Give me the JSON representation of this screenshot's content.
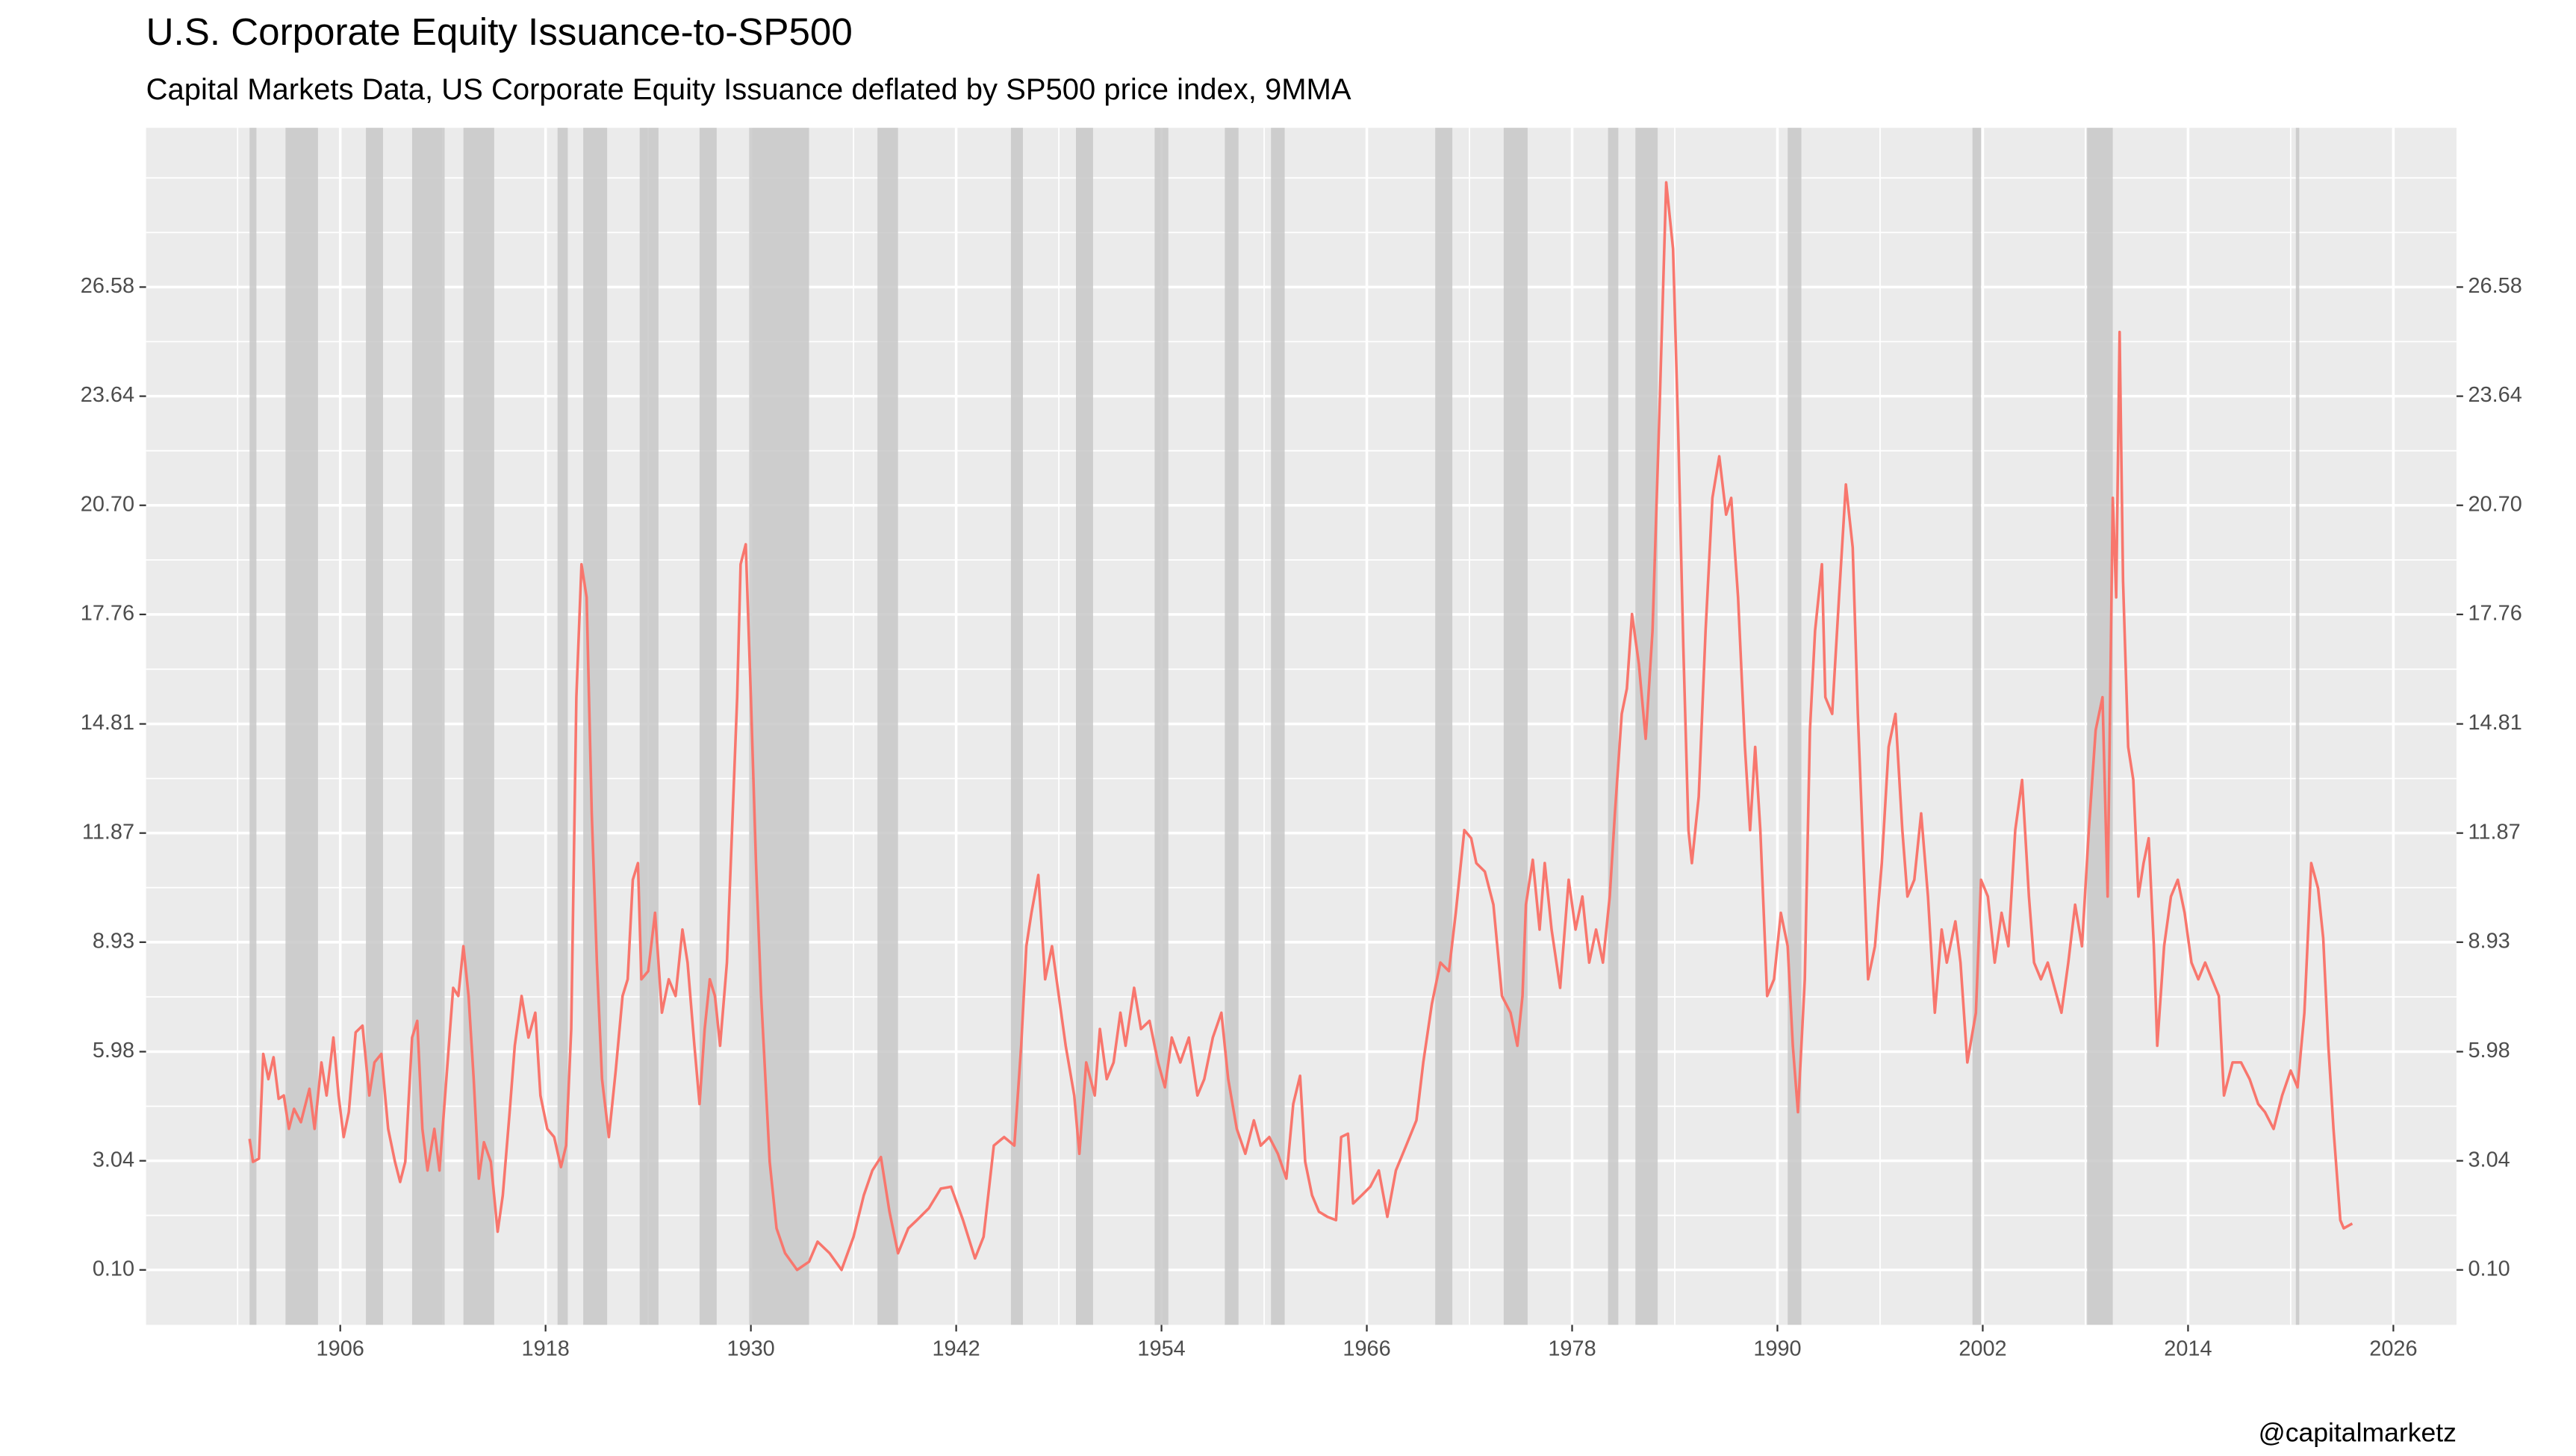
{
  "chart_data": {
    "type": "line",
    "title": "U.S. Corporate Equity Issuance-to-SP500",
    "subtitle": "Capital Markets Data, US Corporate Equity Issuance deflated by SP500 price index, 9MMA",
    "caption": "@capitalmarketz",
    "xlim": [
      1894.65,
      2029.69
    ],
    "xticks": [
      1906,
      1918,
      1930,
      1942,
      1954,
      1966,
      1978,
      1990,
      2002,
      2014,
      2026
    ],
    "xminorticks": [
      1900,
      1912,
      1924,
      1936,
      1948,
      1960,
      1972,
      1984,
      1996,
      2008,
      2020
    ],
    "ylim": [
      -1.38,
      30.87
    ],
    "yticks": [
      {
        "value": 0.1,
        "label": "0.10"
      },
      3.04,
      5.98,
      8.93,
      11.87,
      14.81,
      17.76,
      {
        "value": 20.7,
        "label": "20.70"
      },
      23.64,
      26.58
    ],
    "yminorticks": [
      1.57,
      4.51,
      7.455,
      10.4,
      13.34,
      16.285,
      19.23,
      22.17,
      25.11,
      28.05,
      29.52
    ],
    "grid": true,
    "panel_color": "#ebebeb",
    "recession_color": "#c8c8c8",
    "recessions": [
      [
        1900.7,
        1901.1
      ],
      [
        1902.8,
        1904.7
      ],
      [
        1907.5,
        1908.5
      ],
      [
        1910.2,
        1912.1
      ],
      [
        1913.2,
        1915.0
      ],
      [
        1918.7,
        1919.3
      ],
      [
        1920.2,
        1921.6
      ],
      [
        1923.5,
        1924.6
      ],
      [
        1927.0,
        1928.0
      ],
      [
        1929.9,
        1933.4
      ],
      [
        1937.4,
        1938.6
      ],
      [
        1945.2,
        1945.9
      ],
      [
        1949.0,
        1950.0
      ],
      [
        1953.6,
        1954.4
      ],
      [
        1957.7,
        1958.5
      ],
      [
        1960.4,
        1961.2
      ],
      [
        1970.0,
        1971.0
      ],
      [
        1974.0,
        1975.4
      ],
      [
        1980.1,
        1980.7
      ],
      [
        1981.7,
        1983.0
      ],
      [
        1990.6,
        1991.4
      ],
      [
        2001.4,
        2001.9
      ],
      [
        2008.1,
        2009.6
      ],
      [
        2020.3,
        2020.5
      ]
    ],
    "series": [
      {
        "color": "#f8766d",
        "x": [
          1900.7,
          1900.9,
          1901.25,
          1901.5,
          1901.8,
          1902.1,
          1902.4,
          1902.7,
          1903.0,
          1903.3,
          1903.7,
          1904.2,
          1904.5,
          1904.9,
          1905.2,
          1905.6,
          1905.9,
          1906.2,
          1906.5,
          1906.9,
          1907.3,
          1907.7,
          1908.0,
          1908.4,
          1908.8,
          1909.2,
          1909.5,
          1909.8,
          1910.2,
          1910.5,
          1910.8,
          1911.1,
          1911.5,
          1911.8,
          1912.2,
          1912.6,
          1912.9,
          1913.2,
          1913.5,
          1913.8,
          1914.1,
          1914.4,
          1914.8,
          1915.2,
          1915.5,
          1915.9,
          1916.2,
          1916.6,
          1917.0,
          1917.4,
          1917.7,
          1918.1,
          1918.5,
          1918.9,
          1919.2,
          1919.5,
          1919.8,
          1920.1,
          1920.4,
          1920.7,
          1921.0,
          1921.3,
          1921.7,
          1922.1,
          1922.5,
          1922.8,
          1923.1,
          1923.4,
          1923.6,
          1924.0,
          1924.4,
          1924.8,
          1925.2,
          1925.6,
          1926.0,
          1926.3,
          1926.7,
          1927.0,
          1927.3,
          1927.6,
          1927.9,
          1928.2,
          1928.6,
          1928.9,
          1929.2,
          1929.4,
          1929.7,
          1930.0,
          1930.3,
          1930.6,
          1930.8,
          1931.1,
          1931.5,
          1932.0,
          1932.7,
          1933.4,
          1933.9,
          1934.6,
          1935.3,
          1936.0,
          1936.6,
          1937.1,
          1937.6,
          1938.1,
          1938.6,
          1939.2,
          1939.7,
          1940.4,
          1941.1,
          1941.7,
          1942.4,
          1943.1,
          1943.6,
          1944.2,
          1944.8,
          1945.4,
          1945.8,
          1946.1,
          1946.4,
          1946.8,
          1947.2,
          1947.6,
          1948.0,
          1948.4,
          1948.9,
          1949.2,
          1949.6,
          1950.1,
          1950.4,
          1950.8,
          1951.2,
          1951.6,
          1951.9,
          1952.4,
          1952.8,
          1953.3,
          1953.8,
          1954.2,
          1954.6,
          1955.1,
          1955.6,
          1956.1,
          1956.5,
          1957.0,
          1957.5,
          1957.9,
          1958.4,
          1958.9,
          1959.4,
          1959.8,
          1960.3,
          1960.8,
          1961.3,
          1961.7,
          1962.1,
          1962.4,
          1962.8,
          1963.2,
          1963.7,
          1964.2,
          1964.5,
          1964.9,
          1965.2,
          1965.7,
          1966.2,
          1966.7,
          1967.2,
          1967.7,
          1968.3,
          1968.9,
          1969.3,
          1969.8,
          1970.3,
          1970.8,
          1971.2,
          1971.7,
          1972.1,
          1972.4,
          1972.9,
          1973.4,
          1973.9,
          1974.4,
          1974.8,
          1975.1,
          1975.3,
          1975.7,
          1976.1,
          1976.4,
          1976.8,
          1977.3,
          1977.8,
          1978.2,
          1978.6,
          1979.0,
          1979.4,
          1979.8,
          1980.2,
          1980.5,
          1980.9,
          1981.2,
          1981.5,
          1981.9,
          1982.3,
          1982.7,
          1983.1,
          1983.5,
          1983.9,
          1984.2,
          1984.5,
          1984.8,
          1985.0,
          1985.4,
          1985.8,
          1986.2,
          1986.6,
          1987.0,
          1987.3,
          1987.7,
          1988.1,
          1988.4,
          1988.7,
          1989.0,
          1989.4,
          1989.8,
          1990.2,
          1990.6,
          1990.9,
          1991.2,
          1991.6,
          1991.9,
          1992.2,
          1992.6,
          1992.8,
          1993.2,
          1993.6,
          1994.0,
          1994.4,
          1994.7,
          1995.0,
          1995.3,
          1995.7,
          1996.1,
          1996.5,
          1996.9,
          1997.3,
          1997.6,
          1998.0,
          1998.4,
          1998.8,
          1999.2,
          1999.6,
          1999.9,
          2000.4,
          2000.7,
          2001.1,
          2001.6,
          2001.9,
          2002.3,
          2002.7,
          2003.1,
          2003.5,
          2003.9,
          2004.3,
          2004.7,
          2005.0,
          2005.4,
          2005.8,
          2006.2,
          2006.6,
          2007.0,
          2007.4,
          2007.8,
          2008.2,
          2008.6,
          2009.0,
          2009.3,
          2009.6,
          2009.8,
          2010.0,
          2010.2,
          2010.5,
          2010.8,
          2011.1,
          2011.4,
          2011.7,
          2012.0,
          2012.2,
          2012.6,
          2013.0,
          2013.4,
          2013.8,
          2014.2,
          2014.6,
          2015.0,
          2015.4,
          2015.8,
          2016.1,
          2016.6,
          2017.1,
          2017.6,
          2018.1,
          2018.5,
          2019.0,
          2019.5,
          2020.0,
          2020.4,
          2020.8,
          2021.2,
          2021.6,
          2021.9,
          2022.2,
          2022.5,
          2022.9,
          2023.1,
          2023.6
        ],
        "values": [
          3.63,
          3.01,
          3.1,
          5.92,
          5.24,
          5.83,
          4.71,
          4.8,
          3.9,
          4.44,
          4.08,
          4.98,
          3.9,
          5.69,
          4.8,
          6.36,
          4.8,
          3.68,
          4.35,
          6.5,
          6.68,
          4.8,
          5.69,
          5.92,
          3.9,
          3.01,
          2.47,
          3.01,
          6.36,
          6.81,
          3.9,
          2.78,
          3.9,
          2.78,
          5.24,
          7.7,
          7.48,
          8.82,
          7.48,
          5.24,
          2.56,
          3.54,
          3.01,
          1.13,
          2.11,
          4.35,
          6.14,
          7.48,
          6.36,
          7.03,
          4.8,
          3.9,
          3.68,
          2.87,
          3.45,
          6.59,
          15.53,
          19.11,
          18.22,
          12.4,
          8.38,
          5.24,
          3.68,
          5.47,
          7.48,
          7.93,
          10.61,
          11.06,
          7.93,
          8.15,
          9.72,
          7.03,
          7.93,
          7.48,
          9.27,
          8.38,
          6.14,
          4.57,
          6.59,
          7.93,
          7.48,
          6.14,
          8.38,
          11.95,
          15.53,
          19.11,
          19.65,
          15.53,
          11.06,
          7.48,
          5.69,
          3.01,
          1.22,
          0.55,
          0.1,
          0.32,
          0.86,
          0.55,
          0.1,
          0.99,
          2.11,
          2.78,
          3.14,
          1.67,
          0.55,
          1.22,
          1.44,
          1.76,
          2.29,
          2.34,
          1.44,
          0.41,
          0.99,
          3.45,
          3.68,
          3.45,
          6.14,
          8.82,
          9.72,
          10.74,
          7.93,
          8.82,
          7.48,
          6.14,
          4.8,
          3.23,
          5.69,
          4.8,
          6.59,
          5.24,
          5.69,
          7.03,
          6.14,
          7.7,
          6.59,
          6.81,
          5.69,
          5.02,
          6.36,
          5.69,
          6.36,
          4.8,
          5.24,
          6.36,
          7.03,
          5.24,
          3.9,
          3.23,
          4.13,
          3.45,
          3.68,
          3.23,
          2.56,
          4.57,
          5.33,
          3.01,
          2.11,
          1.67,
          1.53,
          1.44,
          3.68,
          3.77,
          1.89,
          2.11,
          2.34,
          2.78,
          1.53,
          2.78,
          3.45,
          4.13,
          5.69,
          7.26,
          8.38,
          8.15,
          9.72,
          11.95,
          11.73,
          11.06,
          10.83,
          9.94,
          7.48,
          7.03,
          6.14,
          7.48,
          9.94,
          11.15,
          9.27,
          11.06,
          9.27,
          7.7,
          10.61,
          9.27,
          10.16,
          8.38,
          9.27,
          8.38,
          10.16,
          12.4,
          15.08,
          15.76,
          17.77,
          16.43,
          14.41,
          17.32,
          23.14,
          29.4,
          27.61,
          22.69,
          16.87,
          11.95,
          11.06,
          12.85,
          17.32,
          20.9,
          22.02,
          20.45,
          20.9,
          18.22,
          14.19,
          11.95,
          14.19,
          11.95,
          7.48,
          7.93,
          9.72,
          8.82,
          6.14,
          4.35,
          7.93,
          14.64,
          17.32,
          19.11,
          15.53,
          15.08,
          18.22,
          21.26,
          19.56,
          15.08,
          11.51,
          7.93,
          8.82,
          11.06,
          14.19,
          15.08,
          11.95,
          10.16,
          10.61,
          12.4,
          10.16,
          7.03,
          9.27,
          8.38,
          9.49,
          8.38,
          5.69,
          7.03,
          10.61,
          10.16,
          8.38,
          9.72,
          8.82,
          11.95,
          13.3,
          10.16,
          8.38,
          7.93,
          8.38,
          7.7,
          7.03,
          8.38,
          9.94,
          8.82,
          11.95,
          14.64,
          15.53,
          10.16,
          20.9,
          18.22,
          25.37,
          18.66,
          14.19,
          13.3,
          10.16,
          11.06,
          11.73,
          8.82,
          6.14,
          8.82,
          10.16,
          10.61,
          9.72,
          8.38,
          7.93,
          8.38,
          7.93,
          7.48,
          4.8,
          5.69,
          5.69,
          5.24,
          4.57,
          4.35,
          3.9,
          4.8,
          5.47,
          5.02,
          7.03,
          11.06,
          10.38,
          9.04,
          6.14,
          3.9,
          1.44,
          1.22,
          1.35
        ]
      }
    ]
  }
}
